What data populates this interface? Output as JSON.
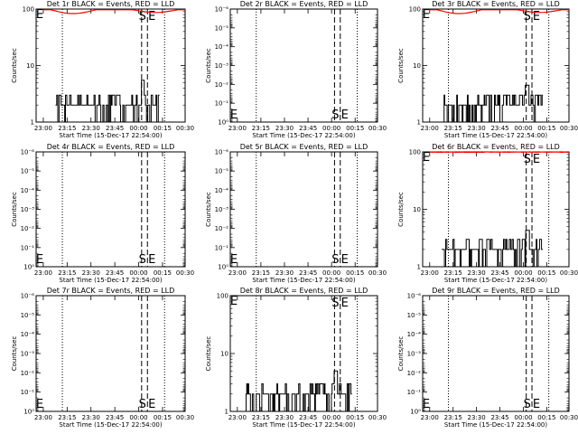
{
  "x_ticks": [
    "23:00",
    "23:15",
    "23:30",
    "23:45",
    "00:00",
    "00:15",
    "00:30"
  ],
  "xlabel": "Start Time (15-Dec-17 22:54:00)",
  "ylabel": "Counts/sec",
  "start_marker": "S",
  "end_marker": "E",
  "colors": {
    "events": "#000000",
    "lld": "#ff0000"
  },
  "chart_data": [
    {
      "type": "line",
      "title": "Det 1r BLACK = Events, RED = LLD",
      "yscale": "log",
      "ylim": [
        1,
        100
      ],
      "y_ticks": [
        {
          "v": 1,
          "t": "1"
        },
        {
          "v": 10,
          "t": "10"
        },
        {
          "v": 100,
          "t": "100"
        }
      ],
      "events_profile": "low",
      "lld_profile": "dip",
      "lld_level": 97,
      "spike_value": 5.5
    },
    {
      "type": "line",
      "title": "Det 2r BLACK = Events, RED = LLD",
      "yscale": "log",
      "ylim": [
        1,
        1e-06
      ],
      "y_ticks": [
        {
          "v": 1,
          "t": "10⁰"
        },
        {
          "v": 0.1,
          "t": "10⁻¹"
        },
        {
          "v": 0.01,
          "t": "10⁻²"
        },
        {
          "v": 0.001,
          "t": "10⁻³"
        },
        {
          "v": 0.0001,
          "t": "10⁻⁴"
        },
        {
          "v": 1e-05,
          "t": "10⁻⁵"
        },
        {
          "v": 1e-06,
          "t": "10⁻⁶"
        }
      ],
      "events_profile": "none",
      "lld_profile": "none",
      "lld_level": 0,
      "spike_value": 0
    },
    {
      "type": "line",
      "title": "Det 3r BLACK = Events, RED = LLD",
      "yscale": "log",
      "ylim": [
        1,
        100
      ],
      "y_ticks": [
        {
          "v": 1,
          "t": "1"
        },
        {
          "v": 10,
          "t": "10"
        },
        {
          "v": 100,
          "t": "100"
        }
      ],
      "events_profile": "low",
      "lld_profile": "dip",
      "lld_level": 97,
      "spike_value": 4.5
    },
    {
      "type": "line",
      "title": "Det 4r BLACK = Events, RED = LLD",
      "yscale": "log",
      "ylim": [
        1,
        1e-06
      ],
      "y_ticks": [
        {
          "v": 1,
          "t": "10⁰"
        },
        {
          "v": 0.1,
          "t": "10⁻¹"
        },
        {
          "v": 0.01,
          "t": "10⁻²"
        },
        {
          "v": 0.001,
          "t": "10⁻³"
        },
        {
          "v": 0.0001,
          "t": "10⁻⁴"
        },
        {
          "v": 1e-05,
          "t": "10⁻⁵"
        },
        {
          "v": 1e-06,
          "t": "10⁻⁶"
        }
      ],
      "events_profile": "none",
      "lld_profile": "none",
      "lld_level": 0,
      "spike_value": 0
    },
    {
      "type": "line",
      "title": "Det 5r BLACK = Events, RED = LLD",
      "yscale": "log",
      "ylim": [
        1,
        1e-06
      ],
      "y_ticks": [
        {
          "v": 1,
          "t": "10⁰"
        },
        {
          "v": 0.1,
          "t": "10⁻¹"
        },
        {
          "v": 0.01,
          "t": "10⁻²"
        },
        {
          "v": 0.001,
          "t": "10⁻³"
        },
        {
          "v": 0.0001,
          "t": "10⁻⁴"
        },
        {
          "v": 1e-05,
          "t": "10⁻⁵"
        },
        {
          "v": 1e-06,
          "t": "10⁻⁶"
        }
      ],
      "events_profile": "none",
      "lld_profile": "none",
      "lld_level": 0,
      "spike_value": 0
    },
    {
      "type": "line",
      "title": "Det 6r BLACK = Events, RED = LLD",
      "yscale": "log",
      "ylim": [
        1,
        100
      ],
      "y_ticks": [
        {
          "v": 1,
          "t": "1"
        },
        {
          "v": 10,
          "t": "10"
        },
        {
          "v": 100,
          "t": "100"
        }
      ],
      "events_profile": "low",
      "lld_profile": "flat",
      "lld_level": 100,
      "spike_value": 4.3
    },
    {
      "type": "line",
      "title": "Det 7r BLACK = Events, RED = LLD",
      "yscale": "log",
      "ylim": [
        1,
        1e-06
      ],
      "y_ticks": [
        {
          "v": 1,
          "t": "10⁰"
        },
        {
          "v": 0.1,
          "t": "10⁻¹"
        },
        {
          "v": 0.01,
          "t": "10⁻²"
        },
        {
          "v": 0.001,
          "t": "10⁻³"
        },
        {
          "v": 0.0001,
          "t": "10⁻⁴"
        },
        {
          "v": 1e-05,
          "t": "10⁻⁵"
        },
        {
          "v": 1e-06,
          "t": "10⁻⁶"
        }
      ],
      "events_profile": "none",
      "lld_profile": "none",
      "lld_level": 0,
      "spike_value": 0
    },
    {
      "type": "line",
      "title": "Det 8r BLACK = Events, RED = LLD",
      "yscale": "log",
      "ylim": [
        1,
        100
      ],
      "y_ticks": [
        {
          "v": 1,
          "t": "1"
        },
        {
          "v": 10,
          "t": "10"
        },
        {
          "v": 100,
          "t": "100"
        }
      ],
      "events_profile": "high",
      "lld_profile": "none",
      "lld_level": 0,
      "spike_value": 5
    },
    {
      "type": "line",
      "title": "Det 9r BLACK = Events, RED = LLD",
      "yscale": "log",
      "ylim": [
        1,
        1e-06
      ],
      "y_ticks": [
        {
          "v": 1,
          "t": "10⁰"
        },
        {
          "v": 0.1,
          "t": "10⁻¹"
        },
        {
          "v": 0.01,
          "t": "10⁻²"
        },
        {
          "v": 0.001,
          "t": "10⁻³"
        },
        {
          "v": 0.0001,
          "t": "10⁻⁴"
        },
        {
          "v": 1e-05,
          "t": "10⁻⁵"
        },
        {
          "v": 1e-06,
          "t": "10⁻⁶"
        }
      ],
      "events_profile": "none",
      "lld_profile": "none",
      "lld_level": 0,
      "spike_value": 0
    }
  ]
}
